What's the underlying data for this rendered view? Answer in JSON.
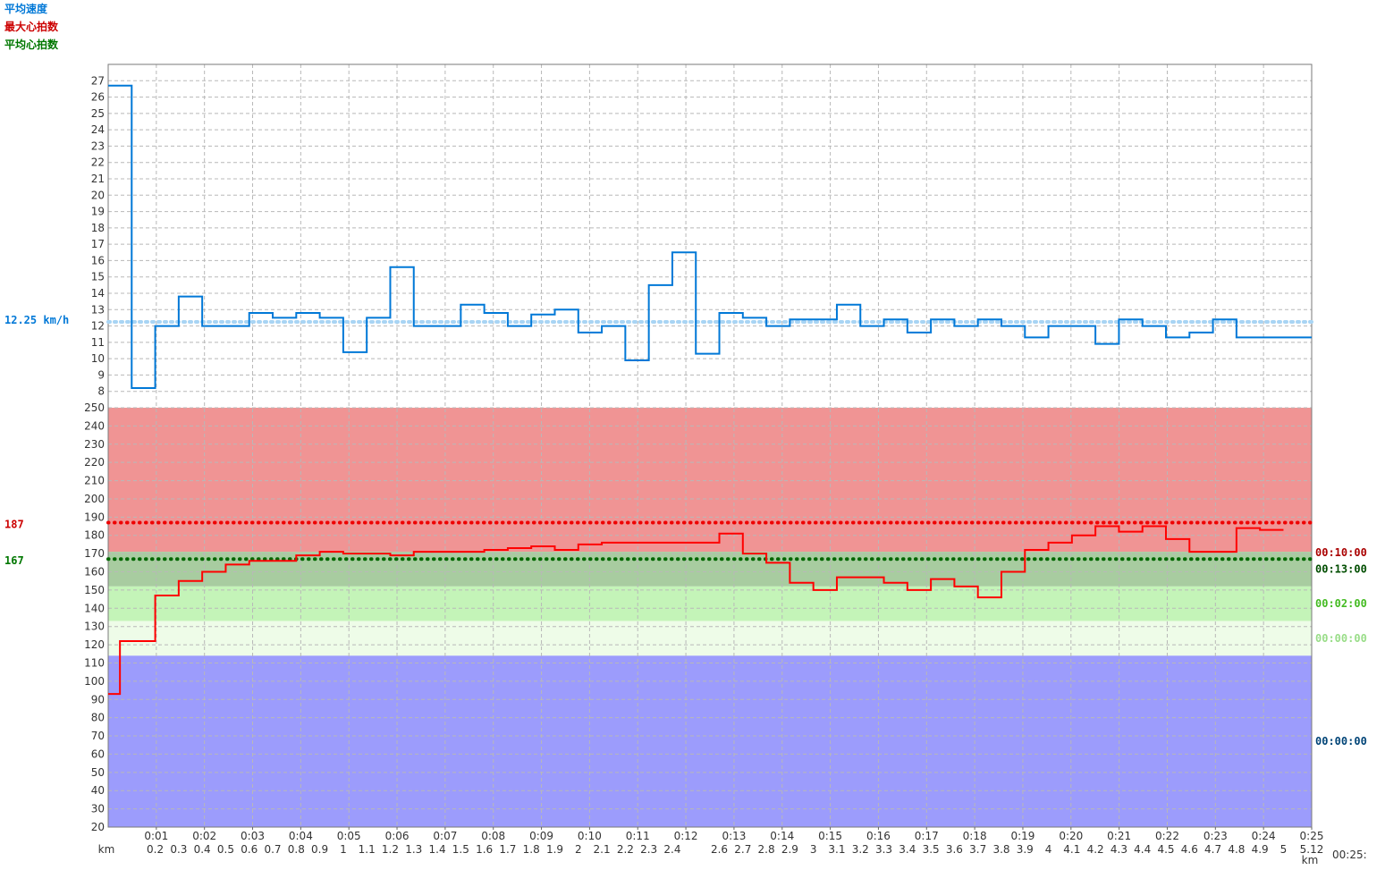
{
  "legend": {
    "speed_label": "平均速度",
    "max_hr_label": "最大心拍数",
    "avg_hr_label": "平均心拍数",
    "speed_color": "#0078d7",
    "max_hr_color": "#cc0000",
    "avg_hr_color": "#007700"
  },
  "chart_data": {
    "type": "line",
    "speed": {
      "unit_label": "12.25 km/h",
      "average": 12.25,
      "ylim": [
        7,
        28
      ],
      "y_ticks": [
        8,
        9,
        10,
        11,
        12,
        13,
        14,
        15,
        16,
        17,
        18,
        19,
        20,
        21,
        22,
        23,
        24,
        25,
        26,
        27
      ],
      "color": "#0078d7",
      "steps": [
        [
          0.0,
          26.7
        ],
        [
          0.1,
          8.2
        ],
        [
          0.2,
          12.0
        ],
        [
          0.3,
          13.8
        ],
        [
          0.4,
          12.0
        ],
        [
          0.6,
          12.8
        ],
        [
          0.7,
          12.5
        ],
        [
          0.8,
          12.8
        ],
        [
          0.9,
          12.5
        ],
        [
          1.0,
          10.4
        ],
        [
          1.1,
          12.5
        ],
        [
          1.2,
          15.6
        ],
        [
          1.3,
          12.0
        ],
        [
          1.5,
          13.3
        ],
        [
          1.6,
          12.8
        ],
        [
          1.7,
          12.0
        ],
        [
          1.8,
          12.7
        ],
        [
          1.9,
          13.0
        ],
        [
          2.0,
          11.6
        ],
        [
          2.1,
          12.0
        ],
        [
          2.2,
          9.9
        ],
        [
          2.3,
          14.5
        ],
        [
          2.4,
          16.5
        ],
        [
          2.5,
          10.3
        ],
        [
          2.6,
          12.8
        ],
        [
          2.7,
          12.5
        ],
        [
          2.8,
          12.0
        ],
        [
          2.9,
          12.4
        ],
        [
          3.1,
          13.3
        ],
        [
          3.2,
          12.0
        ],
        [
          3.3,
          12.4
        ],
        [
          3.4,
          11.6
        ],
        [
          3.5,
          12.4
        ],
        [
          3.6,
          12.0
        ],
        [
          3.7,
          12.4
        ],
        [
          3.8,
          12.0
        ],
        [
          3.9,
          11.3
        ],
        [
          4.0,
          12.0
        ],
        [
          4.2,
          10.9
        ],
        [
          4.3,
          12.4
        ],
        [
          4.4,
          12.0
        ],
        [
          4.5,
          11.3
        ],
        [
          4.6,
          11.6
        ],
        [
          4.7,
          12.4
        ],
        [
          4.8,
          11.3
        ],
        [
          5.12,
          11.3
        ]
      ]
    },
    "heart_rate": {
      "ylim": [
        20,
        250
      ],
      "y_ticks": [
        20,
        30,
        40,
        50,
        60,
        70,
        80,
        90,
        100,
        110,
        120,
        130,
        140,
        150,
        160,
        170,
        180,
        190,
        200,
        210,
        220,
        230,
        240,
        250
      ],
      "max_value": 187,
      "avg_value": 167,
      "max_label": "187",
      "avg_label": "167",
      "color": "#ff0000",
      "steps": [
        [
          0.0,
          93
        ],
        [
          0.05,
          122
        ],
        [
          0.2,
          147
        ],
        [
          0.3,
          155
        ],
        [
          0.4,
          160
        ],
        [
          0.5,
          164
        ],
        [
          0.6,
          166
        ],
        [
          0.8,
          169
        ],
        [
          0.9,
          171
        ],
        [
          1.0,
          170
        ],
        [
          1.2,
          169
        ],
        [
          1.3,
          171
        ],
        [
          1.6,
          172
        ],
        [
          1.7,
          173
        ],
        [
          1.8,
          174
        ],
        [
          1.9,
          172
        ],
        [
          2.0,
          175
        ],
        [
          2.1,
          176
        ],
        [
          2.6,
          181
        ],
        [
          2.7,
          170
        ],
        [
          2.8,
          165
        ],
        [
          2.9,
          154
        ],
        [
          3.0,
          150
        ],
        [
          3.1,
          157
        ],
        [
          3.3,
          154
        ],
        [
          3.4,
          150
        ],
        [
          3.5,
          156
        ],
        [
          3.6,
          152
        ],
        [
          3.7,
          146
        ],
        [
          3.8,
          160
        ],
        [
          3.9,
          172
        ],
        [
          4.0,
          176
        ],
        [
          4.1,
          180
        ],
        [
          4.2,
          185
        ],
        [
          4.3,
          182
        ],
        [
          4.4,
          185
        ],
        [
          4.5,
          178
        ],
        [
          4.6,
          171
        ],
        [
          4.8,
          184
        ],
        [
          4.9,
          183
        ],
        [
          5.0,
          183
        ]
      ],
      "zones": [
        {
          "from": 171,
          "to": 250,
          "color": "#f09494",
          "time": "00:10:00",
          "label_color": "#aa0000"
        },
        {
          "from": 152,
          "to": 171,
          "color": "#a8cca0",
          "time": "00:13:00",
          "label_color": "#004d00"
        },
        {
          "from": 133,
          "to": 152,
          "color": "#c4f4b8",
          "time": "00:02:00",
          "label_color": "#44bb22"
        },
        {
          "from": 114,
          "to": 133,
          "color": "#eefce8",
          "time": "00:00:00",
          "label_color": "#99dd88"
        },
        {
          "from": 20,
          "to": 114,
          "color": "#9c9cfc",
          "time": "00:00:00",
          "label_color": "#004477"
        }
      ]
    },
    "x_axis": {
      "km_min": 0,
      "km_max": 5.12,
      "time_max_min": 25,
      "km_unit": "km",
      "time_unit": "00:25:",
      "time_ticks": [
        {
          "t": 1,
          "label": "0:01"
        },
        {
          "t": 2,
          "label": "0:02"
        },
        {
          "t": 3,
          "label": "0:03"
        },
        {
          "t": 4,
          "label": "0:04"
        },
        {
          "t": 5,
          "label": "0:05"
        },
        {
          "t": 6,
          "label": "0:06"
        },
        {
          "t": 7,
          "label": "0:07"
        },
        {
          "t": 8,
          "label": "0:08"
        },
        {
          "t": 9,
          "label": "0:09"
        },
        {
          "t": 10,
          "label": "0:10"
        },
        {
          "t": 11,
          "label": "0:11"
        },
        {
          "t": 12,
          "label": "0:12"
        },
        {
          "t": 13,
          "label": "0:13"
        },
        {
          "t": 14,
          "label": "0:14"
        },
        {
          "t": 15,
          "label": "0:15"
        },
        {
          "t": 16,
          "label": "0:16"
        },
        {
          "t": 17,
          "label": "0:17"
        },
        {
          "t": 18,
          "label": "0:18"
        },
        {
          "t": 19,
          "label": "0:19"
        },
        {
          "t": 20,
          "label": "0:20"
        },
        {
          "t": 21,
          "label": "0:21"
        },
        {
          "t": 22,
          "label": "0:22"
        },
        {
          "t": 23,
          "label": "0:23"
        },
        {
          "t": 24,
          "label": "0:24"
        },
        {
          "t": 25,
          "label": "0:25"
        }
      ],
      "km_ticks": [
        {
          "k": 0.2,
          "label": "0.2"
        },
        {
          "k": 0.3,
          "label": "0.3"
        },
        {
          "k": 0.4,
          "label": "0.4"
        },
        {
          "k": 0.5,
          "label": "0.5"
        },
        {
          "k": 0.6,
          "label": "0.6"
        },
        {
          "k": 0.7,
          "label": "0.7"
        },
        {
          "k": 0.8,
          "label": "0.8"
        },
        {
          "k": 0.9,
          "label": "0.9"
        },
        {
          "k": 1.0,
          "label": "1"
        },
        {
          "k": 1.1,
          "label": "1.1"
        },
        {
          "k": 1.2,
          "label": "1.2"
        },
        {
          "k": 1.3,
          "label": "1.3"
        },
        {
          "k": 1.4,
          "label": "1.4"
        },
        {
          "k": 1.5,
          "label": "1.5"
        },
        {
          "k": 1.6,
          "label": "1.6"
        },
        {
          "k": 1.7,
          "label": "1.7"
        },
        {
          "k": 1.8,
          "label": "1.8"
        },
        {
          "k": 1.9,
          "label": "1.9"
        },
        {
          "k": 2.0,
          "label": "2"
        },
        {
          "k": 2.1,
          "label": "2.1"
        },
        {
          "k": 2.2,
          "label": "2.2"
        },
        {
          "k": 2.3,
          "label": "2.3"
        },
        {
          "k": 2.4,
          "label": "2.4"
        },
        {
          "k": 2.6,
          "label": "2.6"
        },
        {
          "k": 2.7,
          "label": "2.7"
        },
        {
          "k": 2.8,
          "label": "2.8"
        },
        {
          "k": 2.9,
          "label": "2.9"
        },
        {
          "k": 3.0,
          "label": "3"
        },
        {
          "k": 3.1,
          "label": "3.1"
        },
        {
          "k": 3.2,
          "label": "3.2"
        },
        {
          "k": 3.3,
          "label": "3.3"
        },
        {
          "k": 3.4,
          "label": "3.4"
        },
        {
          "k": 3.5,
          "label": "3.5"
        },
        {
          "k": 3.6,
          "label": "3.6"
        },
        {
          "k": 3.7,
          "label": "3.7"
        },
        {
          "k": 3.8,
          "label": "3.8"
        },
        {
          "k": 3.9,
          "label": "3.9"
        },
        {
          "k": 4.0,
          "label": "4"
        },
        {
          "k": 4.1,
          "label": "4.1"
        },
        {
          "k": 4.2,
          "label": "4.2"
        },
        {
          "k": 4.3,
          "label": "4.3"
        },
        {
          "k": 4.4,
          "label": "4.4"
        },
        {
          "k": 4.5,
          "label": "4.5"
        },
        {
          "k": 4.6,
          "label": "4.6"
        },
        {
          "k": 4.7,
          "label": "4.7"
        },
        {
          "k": 4.8,
          "label": "4.8"
        },
        {
          "k": 4.9,
          "label": "4.9"
        },
        {
          "k": 5.0,
          "label": "5"
        },
        {
          "k": 5.12,
          "label": "5.12"
        }
      ]
    }
  }
}
